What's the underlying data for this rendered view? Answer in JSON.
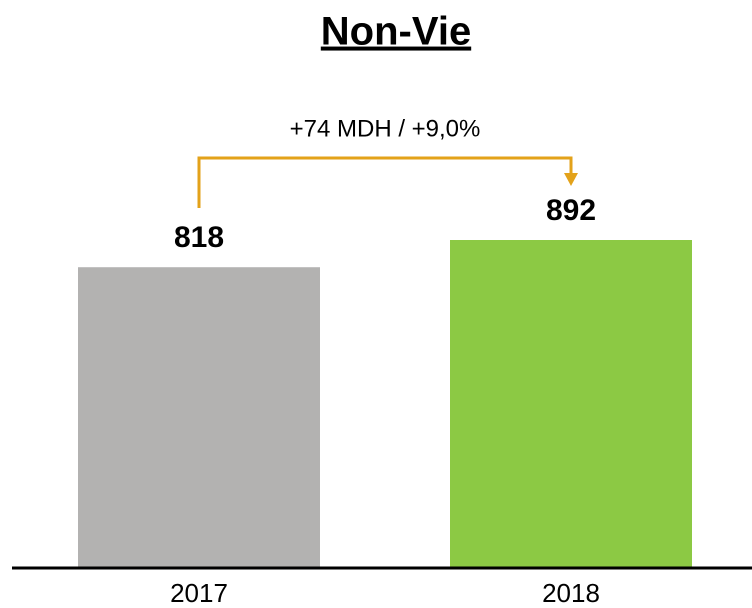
{
  "chart_data": {
    "type": "bar",
    "title": "Non-Vie",
    "categories": [
      "2017",
      "2018"
    ],
    "values": [
      818,
      892
    ],
    "colors": [
      "#b3b2b1",
      "#8cc944"
    ],
    "annotation": "+74 MDH / +9,0%"
  }
}
